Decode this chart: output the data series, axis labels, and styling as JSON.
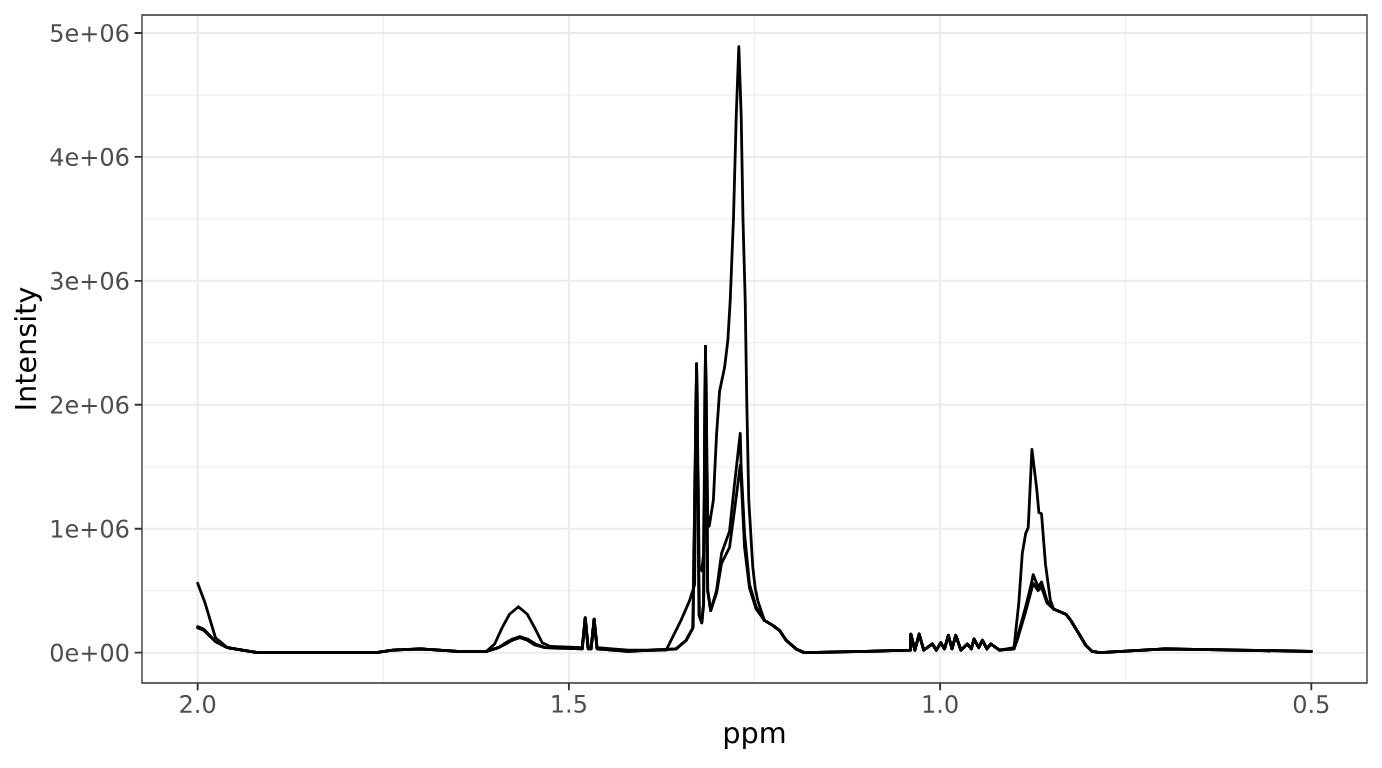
{
  "chart_data": {
    "type": "line",
    "xlabel": "ppm",
    "ylabel": "Intensity",
    "xlim": [
      2.075,
      0.425
    ],
    "ylim": [
      -245000,
      5145000
    ],
    "xticks": [
      {
        "value": 2,
        "label": "2.0"
      },
      1.5,
      {
        "value": 1,
        "label": "1.0"
      },
      0.5
    ],
    "yticks": [
      {
        "value": 0,
        "label": "0e+00"
      },
      {
        "value": 1000000,
        "label": "1e+06"
      },
      {
        "value": 2000000,
        "label": "2e+06"
      },
      {
        "value": 3000000,
        "label": "3e+06"
      },
      {
        "value": 4000000,
        "label": "4e+06"
      },
      {
        "value": 5000000,
        "label": "5e+06"
      }
    ],
    "grid": true,
    "line_style": "solid",
    "series": [
      {
        "color": "#000000",
        "x": [
          2.0,
          1.99,
          1.976,
          1.96,
          1.94,
          1.919,
          1.85,
          1.76,
          1.737,
          1.7,
          1.65,
          1.611,
          1.6,
          1.59,
          1.58,
          1.568,
          1.556,
          1.546,
          1.536,
          1.525,
          1.482,
          1.478,
          1.474,
          1.47,
          1.466,
          1.462,
          1.42,
          1.369,
          1.349,
          1.3374,
          1.3306,
          1.328,
          1.3245,
          1.321,
          1.3185,
          1.316,
          1.313,
          1.311,
          1.3054,
          1.3011,
          1.297,
          1.2903,
          1.2859,
          1.2827,
          1.2782,
          1.2746,
          1.2711,
          1.2679,
          1.2655,
          1.2625,
          1.2604,
          1.2577,
          1.2523,
          1.249,
          1.2456,
          1.2366,
          1.2254,
          1.2164,
          1.2074,
          1.194,
          1.183,
          1.1,
          1.04,
          1.0394,
          1.034,
          1.0282,
          1.022,
          1.0103,
          1.005,
          0.9991,
          0.994,
          0.9889,
          0.984,
          0.9789,
          0.972,
          0.9633,
          0.958,
          0.9543,
          0.948,
          0.9431,
          0.937,
          0.9318,
          0.92,
          0.9005,
          0.894,
          0.8893,
          0.8848,
          0.8813,
          0.8763,
          0.87,
          0.8669,
          0.8634,
          0.858,
          0.8514,
          0.847,
          0.8423,
          0.8306,
          0.8239,
          0.8128,
          0.8038,
          0.7952,
          0.785,
          0.6967,
          0.6,
          0.5
        ],
        "values": [
          560000,
          400000,
          120000,
          40000,
          20000,
          0,
          0,
          0,
          20000,
          30000,
          10000,
          10000,
          70000,
          200000,
          310000,
          370000,
          310000,
          200000,
          80000,
          50000,
          40000,
          280000,
          40000,
          40000,
          270000,
          40000,
          20000,
          20000,
          260000,
          420000,
          550000,
          2330000,
          700000,
          660000,
          800000,
          2470000,
          1100000,
          1020000,
          1230000,
          1760000,
          2110000,
          2300000,
          2520000,
          2840000,
          3520000,
          4330000,
          4890000,
          4330000,
          3500000,
          2840000,
          2030000,
          1230000,
          690000,
          520000,
          420000,
          260000,
          220000,
          180000,
          100000,
          30000,
          0,
          10000,
          20000,
          150000,
          20000,
          150000,
          20000,
          70000,
          20000,
          80000,
          30000,
          140000,
          30000,
          140000,
          20000,
          70000,
          30000,
          110000,
          40000,
          100000,
          30000,
          70000,
          20000,
          40000,
          400000,
          800000,
          960000,
          1010000,
          1640000,
          1330000,
          1130000,
          1120000,
          710000,
          420000,
          350000,
          340000,
          310000,
          260000,
          150000,
          60000,
          10000,
          0,
          30000,
          20000,
          10000
        ]
      },
      {
        "color": "#000000",
        "x": [
          2.0,
          1.992,
          1.976,
          1.96,
          1.94,
          1.919,
          1.76,
          1.737,
          1.7,
          1.65,
          1.611,
          1.595,
          1.585,
          1.576,
          1.566,
          1.556,
          1.545,
          1.532,
          1.482,
          1.478,
          1.474,
          1.47,
          1.466,
          1.462,
          1.42,
          1.3555,
          1.342,
          1.3329,
          1.328,
          1.3245,
          1.321,
          1.3185,
          1.316,
          1.313,
          1.309,
          1.3011,
          1.2944,
          1.2836,
          1.2769,
          1.2692,
          1.2679,
          1.2634,
          1.2567,
          1.2477,
          1.2366,
          1.2254,
          1.2164,
          1.2074,
          1.194,
          1.183,
          1.1,
          1.04,
          1.0394,
          1.034,
          1.0282,
          1.022,
          1.0103,
          1.005,
          0.9991,
          0.994,
          0.9889,
          0.984,
          0.9789,
          0.972,
          0.9633,
          0.958,
          0.9543,
          0.948,
          0.9431,
          0.937,
          0.9318,
          0.92,
          0.9005,
          0.8962,
          0.8848,
          0.8781,
          0.8746,
          0.868,
          0.8634,
          0.856,
          0.847,
          0.8423,
          0.8306,
          0.8239,
          0.8128,
          0.8038,
          0.7952,
          0.785,
          0.6967,
          0.6,
          0.5
        ],
        "values": [
          210000,
          190000,
          90000,
          40000,
          20000,
          0,
          0,
          20000,
          30000,
          10000,
          10000,
          40000,
          80000,
          110000,
          130000,
          110000,
          70000,
          40000,
          30000,
          280000,
          30000,
          30000,
          270000,
          30000,
          10000,
          30000,
          100000,
          200000,
          2330000,
          300000,
          240000,
          400000,
          2470000,
          500000,
          340000,
          500000,
          800000,
          980000,
          1360000,
          1770000,
          1490000,
          960000,
          550000,
          370000,
          260000,
          220000,
          180000,
          100000,
          30000,
          0,
          10000,
          20000,
          150000,
          20000,
          150000,
          20000,
          70000,
          20000,
          80000,
          30000,
          140000,
          30000,
          140000,
          20000,
          70000,
          30000,
          110000,
          40000,
          100000,
          30000,
          70000,
          20000,
          30000,
          120000,
          370000,
          530000,
          630000,
          530000,
          570000,
          420000,
          350000,
          340000,
          310000,
          260000,
          150000,
          60000,
          10000,
          0,
          30000,
          20000,
          10000
        ]
      },
      {
        "color": "#000000",
        "x": [
          2.0,
          1.992,
          1.976,
          1.96,
          1.94,
          1.919,
          1.76,
          1.737,
          1.7,
          1.65,
          1.611,
          1.595,
          1.585,
          1.576,
          1.566,
          1.556,
          1.545,
          1.532,
          1.482,
          1.478,
          1.474,
          1.47,
          1.466,
          1.462,
          1.42,
          1.3555,
          1.342,
          1.3329,
          1.328,
          1.3245,
          1.321,
          1.3185,
          1.316,
          1.313,
          1.309,
          1.3011,
          1.2944,
          1.2836,
          1.2769,
          1.2692,
          1.2679,
          1.2634,
          1.2567,
          1.2477,
          1.2366,
          1.2254,
          1.2164,
          1.2074,
          1.194,
          1.183,
          1.1,
          1.04,
          1.0394,
          1.034,
          1.0282,
          1.022,
          1.0103,
          1.005,
          0.9991,
          0.994,
          0.9889,
          0.984,
          0.9789,
          0.972,
          0.9633,
          0.958,
          0.9543,
          0.948,
          0.9431,
          0.937,
          0.9318,
          0.92,
          0.9005,
          0.8962,
          0.8848,
          0.8781,
          0.8746,
          0.868,
          0.8634,
          0.856,
          0.847,
          0.8423,
          0.8306,
          0.8239,
          0.8128,
          0.8038,
          0.7952,
          0.785,
          0.6967,
          0.6,
          0.5
        ],
        "values": [
          200000,
          180000,
          90000,
          40000,
          20000,
          0,
          0,
          20000,
          30000,
          10000,
          10000,
          40000,
          70000,
          100000,
          120000,
          100000,
          60000,
          40000,
          30000,
          280000,
          30000,
          30000,
          270000,
          30000,
          10000,
          30000,
          100000,
          200000,
          2330000,
          300000,
          240000,
          400000,
          2470000,
          500000,
          340000,
          480000,
          720000,
          850000,
          1150000,
          1510000,
          1400000,
          850000,
          520000,
          350000,
          260000,
          220000,
          180000,
          100000,
          30000,
          0,
          10000,
          20000,
          150000,
          20000,
          150000,
          20000,
          70000,
          20000,
          80000,
          30000,
          140000,
          30000,
          140000,
          20000,
          70000,
          30000,
          110000,
          40000,
          100000,
          30000,
          70000,
          20000,
          30000,
          100000,
          330000,
          480000,
          560000,
          500000,
          530000,
          400000,
          350000,
          340000,
          310000,
          260000,
          150000,
          60000,
          10000,
          0,
          30000,
          20000,
          10000
        ]
      }
    ]
  }
}
